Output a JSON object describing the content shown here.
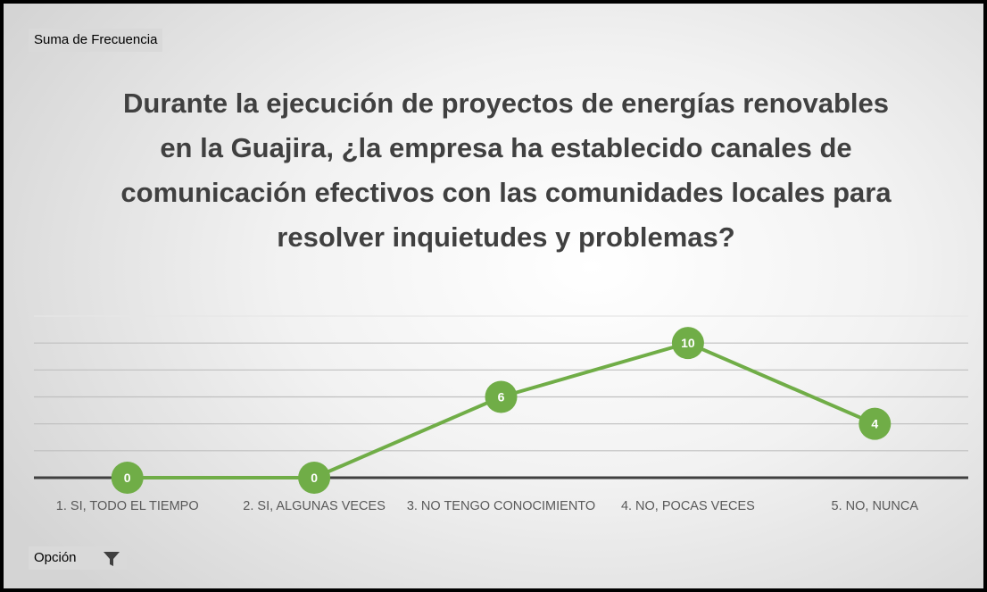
{
  "chart_data": {
    "type": "line",
    "value_field_button": "Suma de Frecuencia",
    "axis_field_button": "Opción",
    "title": "Durante la ejecución de proyectos de energías renovables en la Guajira, ¿la empresa ha establecido canales de comunicación efectivos con las comunidades locales para resolver inquietudes y problemas?",
    "categories": [
      "1. SI, TODO EL TIEMPO",
      "2. SI, ALGUNAS VECES",
      "3. NO TENGO CONOCIMIENTO",
      "4. NO, POCAS VECES",
      "5. NO, NUNCA"
    ],
    "values": [
      0,
      0,
      6,
      10,
      4
    ],
    "color": "#70ad47",
    "ylim": [
      0,
      12
    ],
    "yticks": [
      0,
      2,
      4,
      6,
      8,
      10,
      12
    ],
    "grid": true
  }
}
